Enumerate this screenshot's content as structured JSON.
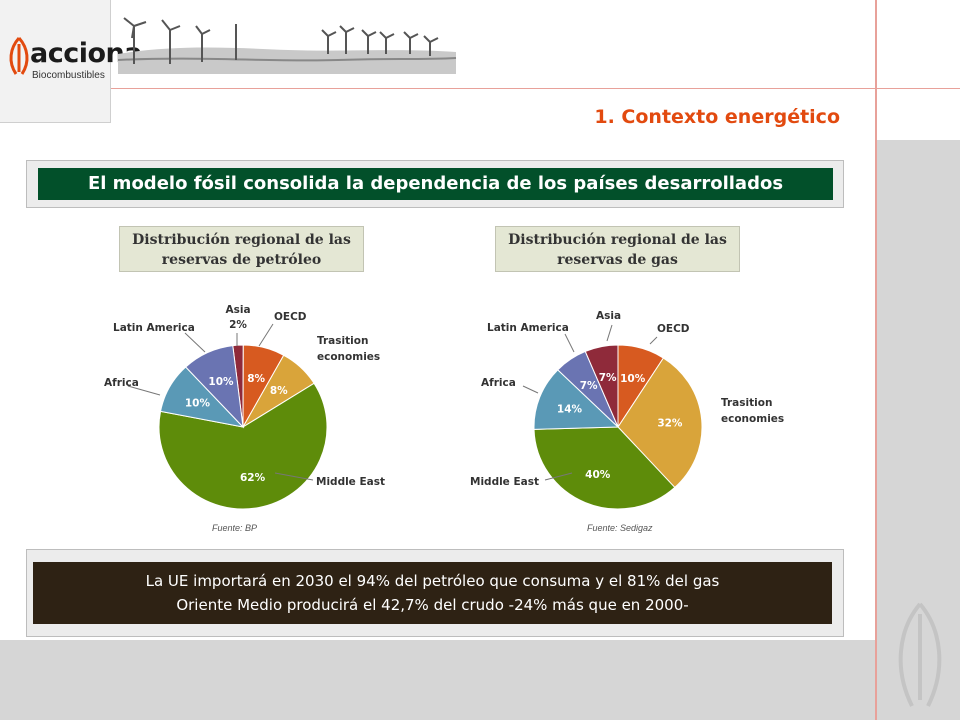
{
  "brand": {
    "name": "acciona",
    "sub": "Biocombustibles",
    "accent": "#e24a0f"
  },
  "header": {
    "section_title": "1. Contexto energético"
  },
  "main": {
    "title": "El modelo fósil consolida la dependencia de los países desarrollados",
    "oil_box": {
      "line1": "Distribución regional de las",
      "line2": "reservas de petróleo"
    },
    "gas_box": {
      "line1": "Distribución regional de las",
      "line2": "reservas de gas"
    },
    "oil_labels": {
      "asia_name": "Asia",
      "asia_pct": "2%",
      "oecd": "OECD",
      "trans1": "Trasition",
      "trans2": "economies",
      "latam": "Latin America",
      "africa": "Africa",
      "middle_east": "Middle East"
    },
    "gas_labels": {
      "asia": "Asia",
      "oecd": "OECD",
      "trans1": "Trasition",
      "trans2": "economies",
      "latam": "Latin America",
      "africa": "Africa",
      "middle_east": "Middle East"
    },
    "oil_source": "Fuente: BP",
    "gas_source": "Fuente: Sedigaz",
    "conclusion_line1": "La UE importará en 2030 el 94% del petróleo que consuma y el 81% del gas",
    "conclusion_line2": "Oriente Medio producirá el 42,7% del crudo -24% más que en 2000-"
  },
  "chart_data": [
    {
      "type": "pie",
      "categories": [
        "Asia",
        "OECD",
        "Trasition economies",
        "Middle East",
        "Africa",
        "Latin America"
      ],
      "values": [
        2,
        8,
        8,
        62,
        10,
        10
      ],
      "labels": [
        "",
        "8%",
        "8%",
        "62%",
        "10%",
        "10%"
      ],
      "colors": [
        "#8f2a3a",
        "#d75a20",
        "#d9a43a",
        "#5e8c0a",
        "#5a99b6",
        "#6a74b2"
      ]
    },
    {
      "type": "pie",
      "categories": [
        "OECD",
        "Trasition economies",
        "Middle East",
        "Africa",
        "Latin America",
        "Asia"
      ],
      "values": [
        10,
        32,
        40,
        14,
        7,
        7
      ],
      "labels": [
        "10%",
        "32%",
        "40%",
        "14%",
        "7%",
        "7%"
      ],
      "colors": [
        "#d75a20",
        "#d9a43a",
        "#5e8c0a",
        "#5a99b6",
        "#6a74b2",
        "#8f2a3a"
      ]
    }
  ]
}
